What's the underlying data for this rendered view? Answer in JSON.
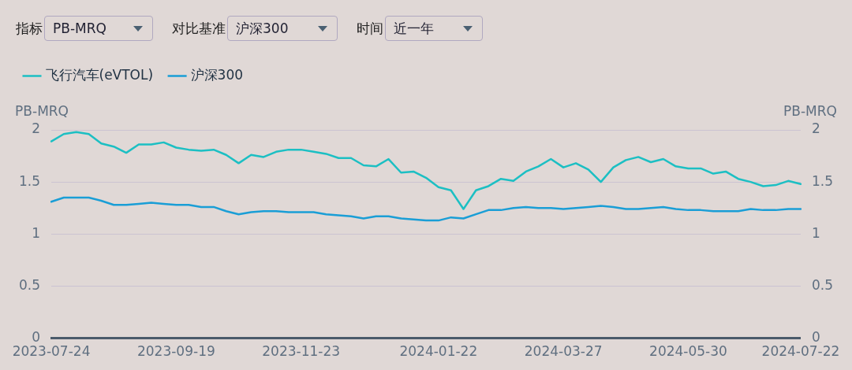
{
  "chart_data": {
    "type": "line",
    "annotations": [
      "指标",
      "PB-MRQ",
      "对比基准",
      "沪深300",
      "时间",
      "近一年"
    ],
    "ylabel": "PB-MRQ",
    "y2label": "PB-MRQ",
    "categories": [
      "2023-07-24",
      null,
      null,
      null,
      null,
      null,
      null,
      null,
      null,
      null,
      "2023-09-19",
      null,
      null,
      null,
      null,
      null,
      null,
      null,
      null,
      null,
      "2023-11-23",
      null,
      null,
      null,
      null,
      null,
      null,
      null,
      null,
      null,
      null,
      "2024-01-22",
      null,
      null,
      null,
      null,
      null,
      null,
      null,
      null,
      null,
      "2024-03-27",
      null,
      null,
      null,
      null,
      null,
      null,
      null,
      null,
      null,
      "2024-05-30",
      null,
      null,
      null,
      null,
      null,
      null,
      null,
      null,
      "2024-07-22"
    ],
    "series": [
      {
        "name": "飞行汽车(eVTOL)",
        "color": "#1cbfc3",
        "values": [
          1.89,
          1.96,
          1.98,
          1.96,
          1.87,
          1.84,
          1.78,
          1.86,
          1.86,
          1.88,
          1.83,
          1.81,
          1.8,
          1.81,
          1.76,
          1.68,
          1.76,
          1.74,
          1.79,
          1.81,
          1.81,
          1.79,
          1.77,
          1.73,
          1.73,
          1.66,
          1.65,
          1.72,
          1.59,
          1.6,
          1.54,
          1.45,
          1.42,
          1.24,
          1.42,
          1.46,
          1.53,
          1.51,
          1.6,
          1.65,
          1.72,
          1.64,
          1.68,
          1.62,
          1.5,
          1.64,
          1.71,
          1.74,
          1.69,
          1.72,
          1.65,
          1.63,
          1.63,
          1.58,
          1.6,
          1.53,
          1.5,
          1.46,
          1.47,
          1.51,
          1.48
        ]
      },
      {
        "name": "沪深300",
        "color": "#1a9ed6",
        "values": [
          1.31,
          1.35,
          1.35,
          1.35,
          1.32,
          1.28,
          1.28,
          1.29,
          1.3,
          1.29,
          1.28,
          1.28,
          1.26,
          1.26,
          1.22,
          1.19,
          1.21,
          1.22,
          1.22,
          1.21,
          1.21,
          1.21,
          1.19,
          1.18,
          1.17,
          1.15,
          1.17,
          1.17,
          1.15,
          1.14,
          1.13,
          1.13,
          1.16,
          1.15,
          1.19,
          1.23,
          1.23,
          1.25,
          1.26,
          1.25,
          1.25,
          1.24,
          1.25,
          1.26,
          1.27,
          1.26,
          1.24,
          1.24,
          1.25,
          1.26,
          1.24,
          1.23,
          1.23,
          1.22,
          1.22,
          1.22,
          1.24,
          1.23,
          1.23,
          1.24,
          1.24
        ]
      }
    ],
    "ylim": [
      0,
      2
    ],
    "yticks": [
      0,
      0.5,
      1,
      1.5,
      2
    ],
    "y2lim": [
      0,
      2
    ],
    "y2ticks": [
      0,
      0.5,
      1,
      1.5,
      2
    ],
    "grid": "y",
    "legend": "top left",
    "marker": "none",
    "line_style": "solid"
  }
}
